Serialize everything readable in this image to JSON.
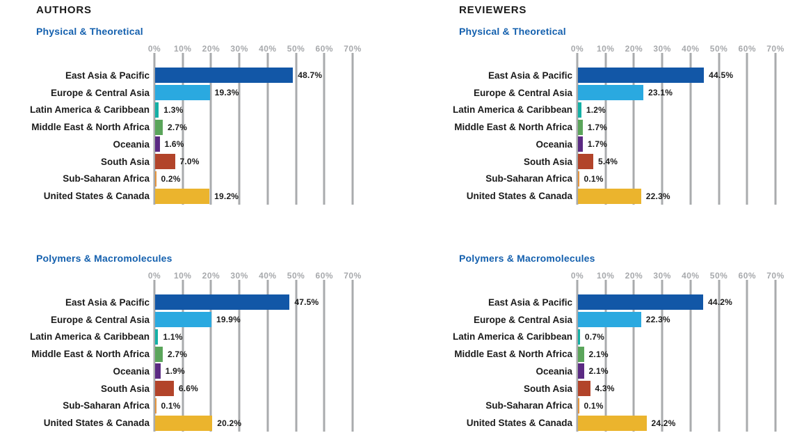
{
  "page_header": {
    "left": "AUTHORS",
    "right": "REVIEWERS"
  },
  "axis": {
    "tick_labels": [
      "0%",
      "10%",
      "20%",
      "30%",
      "40%",
      "50%",
      "60%",
      "70%"
    ],
    "min": 0,
    "max": 70,
    "grid": "vertical"
  },
  "colors": {
    "header_text": "#1a1a1a",
    "subtitle_text": "#1460ae",
    "axis_text": "#a7a9ac",
    "gridline": "#a9abad",
    "value_text": "#1a1a1a",
    "bar_palette": [
      "#1257a7",
      "#2aa9e0",
      "#14b0a6",
      "#5ba55b",
      "#5b2a83",
      "#b2442a",
      "#e5953e",
      "#ebb42d"
    ]
  },
  "chart_data": [
    {
      "type": "bar",
      "panel": "AUTHORS",
      "title": "Physical & Theoretical",
      "categories": [
        "East Asia & Pacific",
        "Europe & Central Asia",
        "Latin America & Caribbean",
        "Middle East & North Africa",
        "Oceania",
        "South Asia",
        "Sub-Saharan Africa",
        "United States & Canada"
      ],
      "values": [
        48.7,
        19.3,
        1.3,
        2.7,
        1.6,
        7.0,
        0.2,
        19.2
      ],
      "labels": [
        "48.7%",
        "19.3%",
        "1.3%",
        "2.7%",
        "1.6%",
        "7.0%",
        "0.2%",
        "19.2%"
      ],
      "xlim": [
        0,
        70
      ],
      "unit": "percent",
      "orientation": "horizontal"
    },
    {
      "type": "bar",
      "panel": "REVIEWERS",
      "title": "Physical & Theoretical",
      "categories": [
        "East Asia & Pacific",
        "Europe & Central Asia",
        "Latin America & Caribbean",
        "Middle East & North Africa",
        "Oceania",
        "South Asia",
        "Sub-Saharan Africa",
        "United States & Canada"
      ],
      "values": [
        44.5,
        23.1,
        1.2,
        1.7,
        1.7,
        5.4,
        0.1,
        22.3
      ],
      "labels": [
        "44.5%",
        "23.1%",
        "1.2%",
        "1.7%",
        "1.7%",
        "5.4%",
        "0.1%",
        "22.3%"
      ],
      "xlim": [
        0,
        70
      ],
      "unit": "percent",
      "orientation": "horizontal"
    },
    {
      "type": "bar",
      "panel": "AUTHORS",
      "title": "Polymers & Macromolecules",
      "categories": [
        "East Asia & Pacific",
        "Europe & Central Asia",
        "Latin America & Caribbean",
        "Middle East & North Africa",
        "Oceania",
        "South Asia",
        "Sub-Saharan Africa",
        "United States & Canada"
      ],
      "values": [
        47.5,
        19.9,
        1.1,
        2.7,
        1.9,
        6.6,
        0.1,
        20.2
      ],
      "labels": [
        "47.5%",
        "19.9%",
        "1.1%",
        "2.7%",
        "1.9%",
        "6.6%",
        "0.1%",
        "20.2%"
      ],
      "xlim": [
        0,
        70
      ],
      "unit": "percent",
      "orientation": "horizontal"
    },
    {
      "type": "bar",
      "panel": "REVIEWERS",
      "title": "Polymers & Macromolecules",
      "categories": [
        "East Asia & Pacific",
        "Europe & Central Asia",
        "Latin America & Caribbean",
        "Middle East & North Africa",
        "Oceania",
        "South Asia",
        "Sub-Saharan Africa",
        "United States & Canada"
      ],
      "values": [
        44.2,
        22.3,
        0.7,
        2.1,
        2.1,
        4.3,
        0.1,
        24.2
      ],
      "labels": [
        "44.2%",
        "22.3%",
        "0.7%",
        "2.1%",
        "2.1%",
        "4.3%",
        "0.1%",
        "24.2%"
      ],
      "xlim": [
        0,
        70
      ],
      "unit": "percent",
      "orientation": "horizontal"
    }
  ]
}
